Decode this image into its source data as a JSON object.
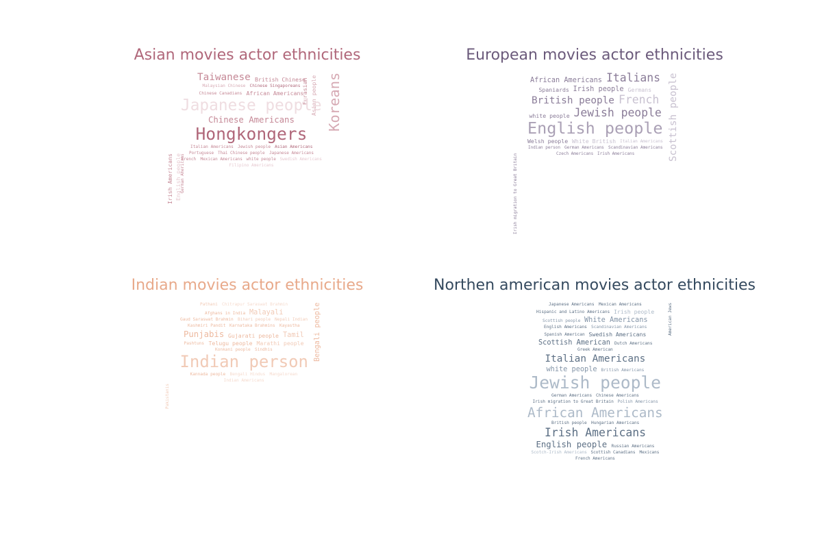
{
  "charts": [
    {
      "id": "asian",
      "title": "Asian movies actor ethnicities",
      "title_color": "#b0677a",
      "word_colors": [
        "#b0677a",
        "#c58896",
        "#d6a9b3",
        "#e6c9d0",
        "#efdde1"
      ],
      "words": [
        {
          "text": "Koreans",
          "weight": 10,
          "c": 2,
          "v": true
        },
        {
          "text": "Irish Americans",
          "weight": 4,
          "c": 1,
          "v": true
        },
        {
          "text": "Asian people",
          "weight": 4,
          "c": 2,
          "v": true
        },
        {
          "text": "Taiwanese",
          "weight": 7,
          "c": 1
        },
        {
          "text": "English people",
          "weight": 4,
          "c": 3,
          "v": true
        },
        {
          "text": "British Chinese",
          "weight": 4,
          "c": 1
        },
        {
          "text": "Malaysian Chinese",
          "weight": 3,
          "c": 2
        },
        {
          "text": "Chinese Singaporeans",
          "weight": 3,
          "c": 0
        },
        {
          "text": "Chinese Canadians",
          "weight": 3,
          "c": 1
        },
        {
          "text": "Eurasian",
          "weight": 4,
          "c": 1,
          "v": true
        },
        {
          "text": "German Americans",
          "weight": 2,
          "c": 1,
          "v": true
        },
        {
          "text": "African Americans",
          "weight": 4,
          "c": 1
        },
        {
          "text": "Japanese people",
          "weight": 13,
          "c": 4
        },
        {
          "text": "Chinese Americans",
          "weight": 6,
          "c": 1
        },
        {
          "text": "Hongkongers",
          "weight": 12,
          "c": 0
        },
        {
          "text": "Italian Americans",
          "weight": 3,
          "c": 1
        },
        {
          "text": "Jewish people",
          "weight": 3,
          "c": 1
        },
        {
          "text": "Asian Americans",
          "weight": 3,
          "c": 0
        },
        {
          "text": "Portuguese",
          "weight": 2,
          "c": 1
        },
        {
          "text": "Thai Chinese people",
          "weight": 2,
          "c": 1
        },
        {
          "text": "Japanese Americans",
          "weight": 2,
          "c": 1
        },
        {
          "text": "French",
          "weight": 2,
          "c": 1
        },
        {
          "text": "Mexican Americans",
          "weight": 2,
          "c": 1
        },
        {
          "text": "white people",
          "weight": 2,
          "c": 1
        },
        {
          "text": "Swedish Americans",
          "weight": 2,
          "c": 3
        },
        {
          "text": "Filipino Americans",
          "weight": 2,
          "c": 3
        }
      ]
    },
    {
      "id": "european",
      "title": "European movies actor ethnicities",
      "title_color": "#6b5a7b",
      "word_colors": [
        "#6b5a7b",
        "#8a7c98",
        "#aaa0b5",
        "#c8c1d0",
        "#ddd8e2"
      ],
      "words": [
        {
          "text": "African Americans",
          "weight": 5,
          "c": 1
        },
        {
          "text": "Italians",
          "weight": 8,
          "c": 1
        },
        {
          "text": "Scottish people",
          "weight": 7,
          "c": 3,
          "v": true
        },
        {
          "text": "Irish migration to Great Britain",
          "weight": 3,
          "c": 1,
          "v": true
        },
        {
          "text": "Spaniards",
          "weight": 4,
          "c": 1
        },
        {
          "text": "Irish people",
          "weight": 5,
          "c": 1
        },
        {
          "text": "Germans",
          "weight": 4,
          "c": 3
        },
        {
          "text": "British people",
          "weight": 7,
          "c": 1
        },
        {
          "text": "French",
          "weight": 8,
          "c": 3
        },
        {
          "text": "white people",
          "weight": 4,
          "c": 1
        },
        {
          "text": "Jewish people",
          "weight": 8,
          "c": 1
        },
        {
          "text": "English people",
          "weight": 13,
          "c": 2
        },
        {
          "text": "Welsh people",
          "weight": 4,
          "c": 1
        },
        {
          "text": "White British",
          "weight": 4,
          "c": 3
        },
        {
          "text": "Italian Americans",
          "weight": 3,
          "c": 3
        },
        {
          "text": "Indian person",
          "weight": 2,
          "c": 1
        },
        {
          "text": "German Americans",
          "weight": 2,
          "c": 1
        },
        {
          "text": "Scandinavian Americans",
          "weight": 2,
          "c": 1
        },
        {
          "text": "Czech Americans",
          "weight": 2,
          "c": 1
        },
        {
          "text": "Irish Americans",
          "weight": 2,
          "c": 1
        }
      ]
    },
    {
      "id": "indian",
      "title": "Indian movies actor ethnicities",
      "title_color": "#e8a98a",
      "word_colors": [
        "#e8a98a",
        "#edb99f",
        "#f1cab6",
        "#f5dacd",
        "#f9e9e1"
      ],
      "words": [
        {
          "text": "Pathani",
          "weight": 3,
          "c": 2
        },
        {
          "text": "Chitrapur Saraswat Brahmin",
          "weight": 3,
          "c": 3
        },
        {
          "text": "Afghans in India",
          "weight": 3,
          "c": 1
        },
        {
          "text": "Malayali",
          "weight": 5,
          "c": 2
        },
        {
          "text": "Gaud Saraswat Brahmin",
          "weight": 3,
          "c": 1
        },
        {
          "text": "Bihari people",
          "weight": 3,
          "c": 2
        },
        {
          "text": "Nepali Indian",
          "weight": 3,
          "c": 2
        },
        {
          "text": "Kashmiri Pandit",
          "weight": 3,
          "c": 1
        },
        {
          "text": "Bengali people",
          "weight": 5,
          "c": 1,
          "v": true
        },
        {
          "text": "Karnataka Brahmins",
          "weight": 3,
          "c": 1
        },
        {
          "text": "Kayastha",
          "weight": 3,
          "c": 1
        },
        {
          "text": "Punjabis",
          "weight": 6,
          "c": 1
        },
        {
          "text": "Pakistanis",
          "weight": 3,
          "c": 2,
          "v": true
        },
        {
          "text": "Gujarati people",
          "weight": 4,
          "c": 1
        },
        {
          "text": "Tamil",
          "weight": 5,
          "c": 2
        },
        {
          "text": "Pashtuns",
          "weight": 3,
          "c": 1
        },
        {
          "text": "Telugu people",
          "weight": 4,
          "c": 1
        },
        {
          "text": "Marathi people",
          "weight": 4,
          "c": 2
        },
        {
          "text": "Konkani people",
          "weight": 3,
          "c": 1
        },
        {
          "text": "Sindhis",
          "weight": 3,
          "c": 1
        },
        {
          "text": "Indian person",
          "weight": 12,
          "c": 2
        },
        {
          "text": "Kannada people",
          "weight": 3,
          "c": 1
        },
        {
          "text": "Bengali Hindus",
          "weight": 3,
          "c": 3
        },
        {
          "text": "Mangalorean",
          "weight": 3,
          "c": 3
        },
        {
          "text": "Indian Americans",
          "weight": 3,
          "c": 3
        }
      ]
    },
    {
      "id": "northern-american",
      "title": "Northen american movies actor ethnicities",
      "title_color": "#34495e",
      "word_colors": [
        "#34495e",
        "#5c6f84",
        "#8495a8",
        "#adbac8",
        "#d2dae3"
      ],
      "words": [
        {
          "text": "Japanese Americans",
          "weight": 3,
          "c": 1
        },
        {
          "text": "Mexican Americans",
          "weight": 3,
          "c": 1
        },
        {
          "text": "Hispanic and Latino Americans",
          "weight": 3,
          "c": 1
        },
        {
          "text": "Irish people",
          "weight": 4,
          "c": 3
        },
        {
          "text": "Scottish people",
          "weight": 3,
          "c": 2
        },
        {
          "text": "White Americans",
          "weight": 5,
          "c": 2
        },
        {
          "text": "English Americans",
          "weight": 3,
          "c": 1
        },
        {
          "text": "Scandinavian Americans",
          "weight": 3,
          "c": 2
        },
        {
          "text": "Spanish American",
          "weight": 3,
          "c": 1
        },
        {
          "text": "Swedish Americans",
          "weight": 4,
          "c": 1
        },
        {
          "text": "Scottish American",
          "weight": 5,
          "c": 1
        },
        {
          "text": "Dutch Americans",
          "weight": 3,
          "c": 1
        },
        {
          "text": "Greek American",
          "weight": 3,
          "c": 1
        },
        {
          "text": "Italian Americans",
          "weight": 7,
          "c": 1
        },
        {
          "text": "white people",
          "weight": 5,
          "c": 2
        },
        {
          "text": "British Americans",
          "weight": 3,
          "c": 2
        },
        {
          "text": "Jewish people",
          "weight": 12,
          "c": 3
        },
        {
          "text": "American Jews",
          "weight": 3,
          "c": 1,
          "v": true
        },
        {
          "text": "German Americans",
          "weight": 3,
          "c": 1
        },
        {
          "text": "Chinese Americans",
          "weight": 3,
          "c": 1
        },
        {
          "text": "Irish migration to Great Britain",
          "weight": 3,
          "c": 1
        },
        {
          "text": "Polish Americans",
          "weight": 3,
          "c": 2
        },
        {
          "text": "African Americans",
          "weight": 12,
          "c": 3
        },
        {
          "text": "British people",
          "weight": 3,
          "c": 1
        },
        {
          "text": "Hungarian Americans",
          "weight": 3,
          "c": 1
        },
        {
          "text": "Irish Americans",
          "weight": 8,
          "c": 1
        },
        {
          "text": "English people",
          "weight": 6,
          "c": 1
        },
        {
          "text": "Russian Americans",
          "weight": 3,
          "c": 1
        },
        {
          "text": "Scotch-Irish Americans",
          "weight": 3,
          "c": 3
        },
        {
          "text": "Scottish Canadians",
          "weight": 2,
          "c": 1
        },
        {
          "text": "Mexicans",
          "weight": 2,
          "c": 1
        },
        {
          "text": "French Americans",
          "weight": 2,
          "c": 1
        }
      ]
    }
  ]
}
